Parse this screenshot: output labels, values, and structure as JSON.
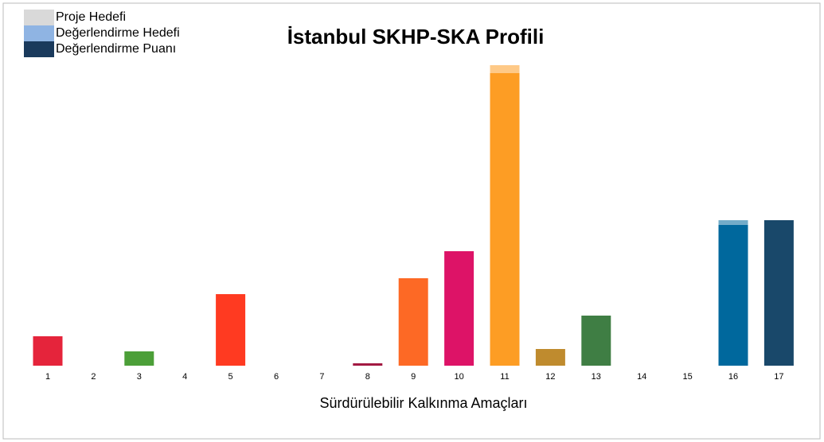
{
  "chart_data": {
    "type": "bar",
    "title": "İstanbul SKHP-SKA Profili",
    "x_label": "Sürdürülebilir Kalkınma Amaçları",
    "categories": [
      "1",
      "2",
      "3",
      "4",
      "5",
      "6",
      "7",
      "8",
      "9",
      "10",
      "11",
      "12",
      "13",
      "14",
      "15",
      "16",
      "17"
    ],
    "ylim": [
      0,
      400
    ],
    "stacked": true,
    "legend": "top-left",
    "series": [
      {
        "name": "Değerlendirme Puanı",
        "color": "#1a3a5c",
        "colors": [
          "#e5243b",
          "#dda63a",
          "#4c9f38",
          "#c5192d",
          "#ff3a21",
          "#26bde2",
          "#fcc30b",
          "#a21942",
          "#fd6925",
          "#dd1367",
          "#fd9d24",
          "#bf8b2e",
          "#3f7e44",
          "#0a97d9",
          "#56c02b",
          "#00689d",
          "#19486a"
        ],
        "values": [
          37,
          0,
          18,
          0,
          90,
          0,
          0,
          3,
          110,
          144,
          368,
          21,
          63,
          0,
          0,
          177,
          183
        ]
      },
      {
        "name": "Değerlendirme Hedefi",
        "color": "#8fb4e3",
        "values": [
          0,
          0,
          0,
          0,
          0,
          0,
          0,
          0,
          0,
          0,
          10,
          0,
          0,
          0,
          0,
          6,
          0
        ]
      },
      {
        "name": "Proje Hedefi",
        "color": "#d9d9d9",
        "values": [
          0,
          0,
          0,
          0,
          0,
          0,
          0,
          0,
          0,
          0,
          0,
          0,
          0,
          0,
          0,
          0,
          0
        ]
      }
    ]
  }
}
